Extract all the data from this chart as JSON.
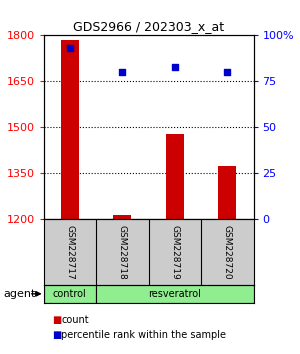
{
  "title": "GDS2966 / 202303_x_at",
  "samples": [
    "GSM228717",
    "GSM228718",
    "GSM228719",
    "GSM228720"
  ],
  "bar_values": [
    1785,
    1215,
    1480,
    1375
  ],
  "bar_color": "#cc0000",
  "scatter_values": [
    93,
    80,
    83,
    80
  ],
  "scatter_color": "#0000cc",
  "ylim_left": [
    1200,
    1800
  ],
  "yticks_left": [
    1200,
    1350,
    1500,
    1650,
    1800
  ],
  "ylim_right": [
    0,
    100
  ],
  "yticks_right": [
    0,
    25,
    50,
    75,
    100
  ],
  "ytick_labels_right": [
    "0",
    "25",
    "50",
    "75",
    "100%"
  ],
  "bar_bottom": 1200,
  "group_row_color": "#90EE90",
  "sample_box_color": "#cccccc",
  "legend_count_color": "#cc0000",
  "legend_pct_color": "#0000cc",
  "legend_count_label": "count",
  "legend_pct_label": "percentile rank within the sample",
  "grid_color": "#000000",
  "background_color": "#ffffff",
  "bar_width": 0.35
}
